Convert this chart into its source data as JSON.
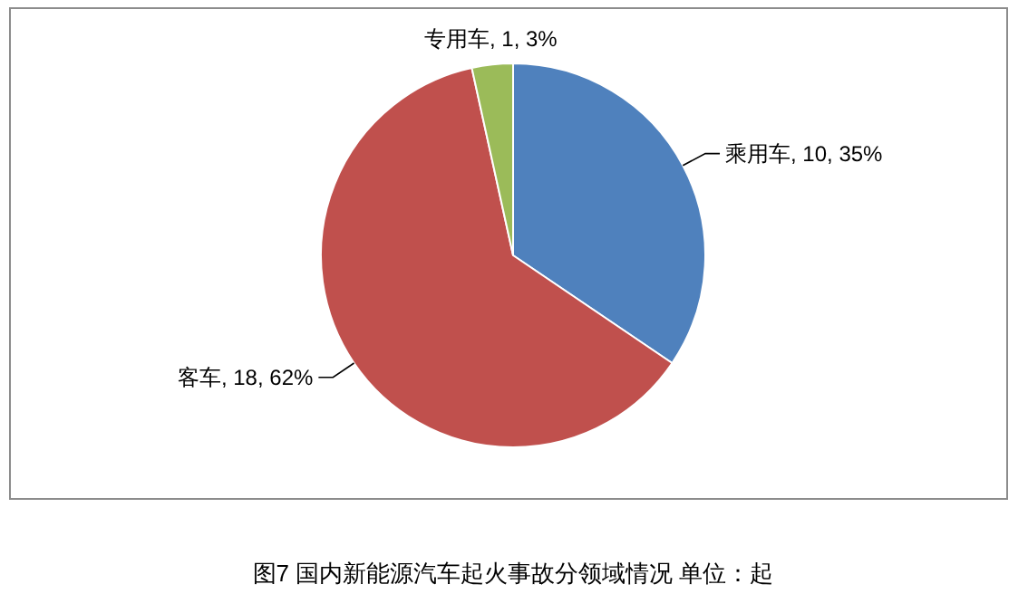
{
  "chart_data": {
    "type": "pie",
    "title": "图7 国内新能源汽车起火事故分领域情况 单位：起",
    "categories": [
      "乘用车",
      "客车",
      "专用车"
    ],
    "values": [
      10,
      18,
      1
    ],
    "value_labels": [
      "10, 35%",
      "18, 62%",
      "1, 3%"
    ],
    "colors": [
      "#4f81bd",
      "#c0504d",
      "#9bbb59"
    ]
  }
}
